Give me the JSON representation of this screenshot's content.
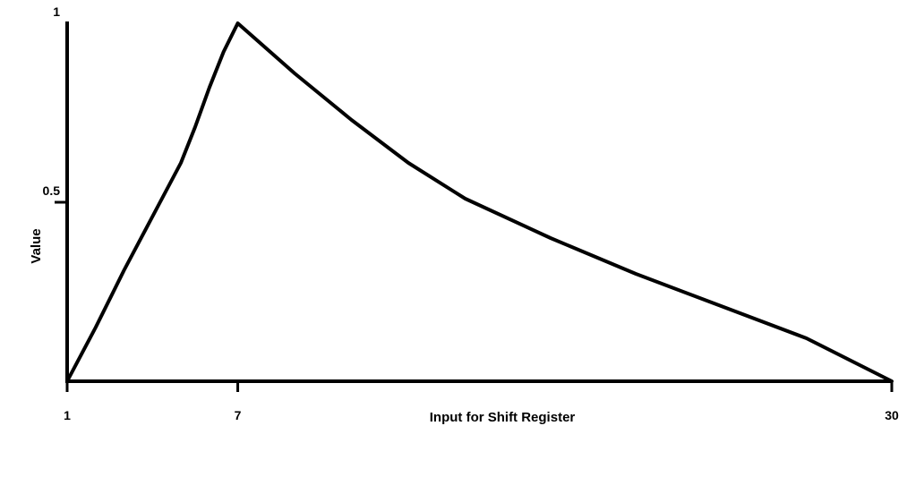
{
  "chart_data": {
    "type": "line",
    "title": "",
    "xlabel": "Input for Shift Register",
    "ylabel": "Value",
    "xlim": [
      1,
      30
    ],
    "ylim": [
      0,
      1
    ],
    "x_ticks": [
      1,
      7,
      30
    ],
    "x_tick_labels": [
      "1",
      "7",
      "30"
    ],
    "y_ticks": [
      1,
      0.5
    ],
    "y_tick_labels": [
      "1",
      "0.5"
    ],
    "grid": false,
    "legend": "none",
    "series": [
      {
        "color": "#000000",
        "x": [
          1,
          2,
          3,
          4,
          5,
          5.5,
          6,
          6.5,
          7,
          9,
          11,
          13,
          15,
          18,
          21,
          24,
          27,
          30
        ],
        "y": [
          0,
          0.15,
          0.31,
          0.46,
          0.61,
          0.71,
          0.82,
          0.92,
          1.0,
          0.86,
          0.73,
          0.61,
          0.51,
          0.4,
          0.3,
          0.21,
          0.12,
          0.0
        ]
      }
    ]
  }
}
